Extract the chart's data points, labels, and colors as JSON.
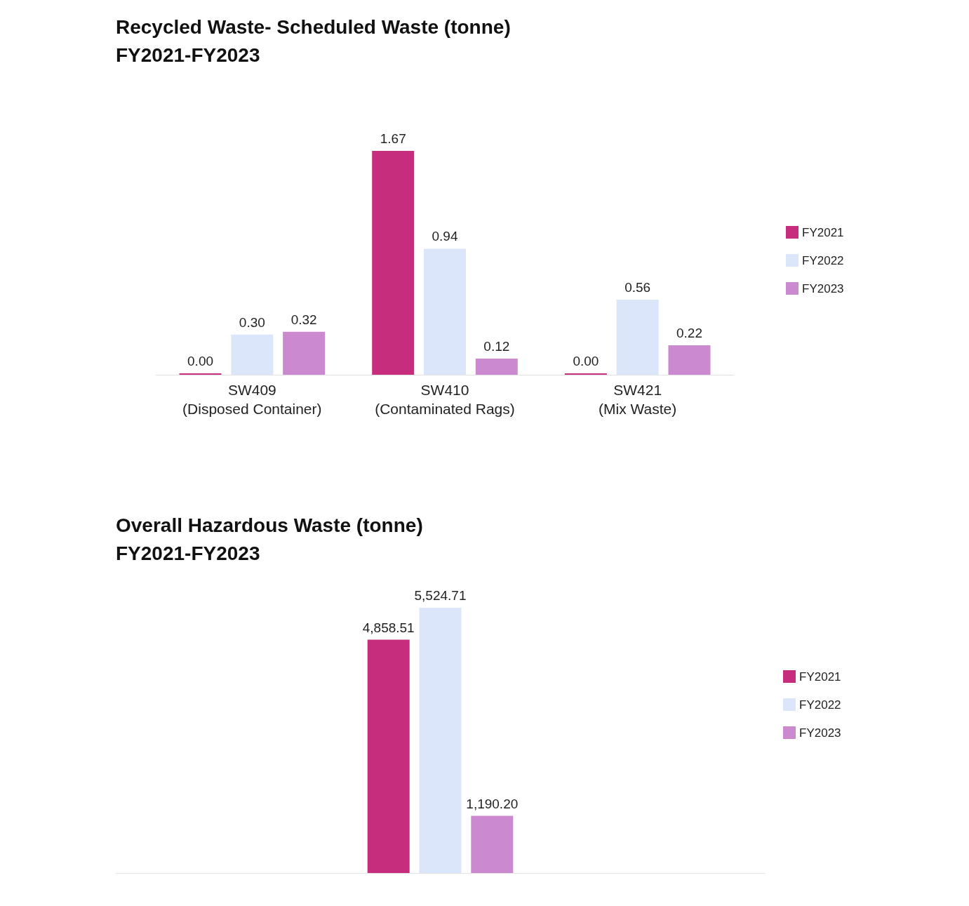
{
  "chart_data": [
    {
      "type": "bar",
      "title": "Recycled Waste- Scheduled Waste (tonne)",
      "subtitle": "FY2021-FY2023",
      "categories": [
        "SW409 (Disposed Container)",
        "SW410 (Contaminated Rags)",
        "SW421 (Mix Waste)"
      ],
      "series": [
        {
          "name": "FY2021",
          "color": "#c62d7c",
          "values": [
            0.0,
            1.67,
            0.0
          ],
          "value_labels": [
            "0.00",
            "1.67",
            "0.00"
          ]
        },
        {
          "name": "FY2022",
          "color": "#dce6fb",
          "values": [
            0.3,
            0.94,
            0.56
          ],
          "value_labels": [
            "0.30",
            "0.94",
            "0.56"
          ]
        },
        {
          "name": "FY2023",
          "color": "#cb8ad0",
          "values": [
            0.32,
            0.12,
            0.22
          ],
          "value_labels": [
            "0.32",
            "0.12",
            "0.22"
          ]
        }
      ],
      "legend": "right",
      "tick_labels": "x",
      "grid": false
    },
    {
      "type": "bar",
      "title": "Overall Hazardous Waste (tonne)",
      "subtitle": "FY2021-FY2023",
      "categories": [
        null
      ],
      "series": [
        {
          "name": "FY2021",
          "color": "#c62d7c",
          "values": [
            4858.51
          ],
          "value_labels": [
            "4,858.51"
          ]
        },
        {
          "name": "FY2022",
          "color": "#dce6fb",
          "values": [
            5524.71
          ],
          "value_labels": [
            "5,524.71"
          ]
        },
        {
          "name": "FY2023",
          "color": "#cb8ad0",
          "values": [
            1190.2
          ],
          "value_labels": [
            "1,190.20"
          ]
        }
      ],
      "legend": "right",
      "tick_labels": false,
      "grid": false
    }
  ]
}
